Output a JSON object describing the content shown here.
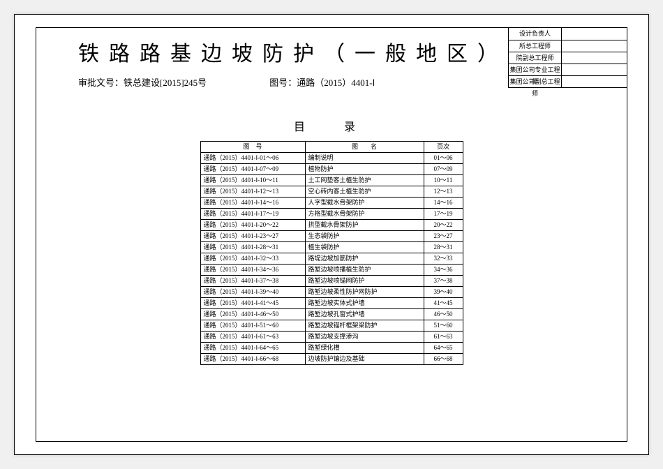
{
  "header": {
    "main_title": "铁路路基边坡防护（一般地区）",
    "approval_label": "审批文号：",
    "approval_no": "铁总建设[2015]245号",
    "drawing_label": "图号：",
    "drawing_no": "通路（2015）4401-Ⅰ"
  },
  "approval_rows": [
    {
      "label": "设计负责人",
      "value": ""
    },
    {
      "label": "所总工程师",
      "value": ""
    },
    {
      "label": "院副总工程师",
      "value": ""
    },
    {
      "label": "集团公司专业工程师",
      "value": ""
    },
    {
      "label": "集团公司副总工程师",
      "value": ""
    }
  ],
  "toc": {
    "title": "目　录",
    "columns": {
      "code": "图　号",
      "name": "图　　名",
      "page": "页次"
    },
    "rows": [
      {
        "code": "通路（2015）4401-Ⅰ-01～06",
        "name": "编制说明",
        "page": "01～06"
      },
      {
        "code": "通路（2015）4401-Ⅰ-07～09",
        "name": "植物防护",
        "page": "07～09"
      },
      {
        "code": "通路（2015）4401-Ⅰ-10～11",
        "name": "土工网垫客土植生防护",
        "page": "10～11"
      },
      {
        "code": "通路（2015）4401-Ⅰ-12～13",
        "name": "空心砖内客土植生防护",
        "page": "12～13"
      },
      {
        "code": "通路（2015）4401-Ⅰ-14～16",
        "name": "人字型截水骨架防护",
        "page": "14～16"
      },
      {
        "code": "通路（2015）4401-Ⅰ-17～19",
        "name": "方格型截水骨架防护",
        "page": "17～19"
      },
      {
        "code": "通路（2015）4401-Ⅰ-20～22",
        "name": "拱型截水骨架防护",
        "page": "20～22"
      },
      {
        "code": "通路（2015）4401-Ⅰ-23～27",
        "name": "生态袋防护",
        "page": "23～27"
      },
      {
        "code": "通路（2015）4401-Ⅰ-28～31",
        "name": "植生袋防护",
        "page": "28～31"
      },
      {
        "code": "通路（2015）4401-Ⅰ-32～33",
        "name": "路堤边坡加筋防护",
        "page": "32～33"
      },
      {
        "code": "通路（2015）4401-Ⅰ-34～36",
        "name": "路堑边坡喷播植生防护",
        "page": "34～36"
      },
      {
        "code": "通路（2015）4401-Ⅰ-37～38",
        "name": "路堑边坡喷锚网防护",
        "page": "37～38"
      },
      {
        "code": "通路（2015）4401-Ⅰ-39～40",
        "name": "路堑边坡柔性防护网防护",
        "page": "39～40"
      },
      {
        "code": "通路（2015）4401-Ⅰ-41～45",
        "name": "路堑边坡实体式护墙",
        "page": "41～45"
      },
      {
        "code": "通路（2015）4401-Ⅰ-46～50",
        "name": "路堑边坡孔窗式护墙",
        "page": "46～50"
      },
      {
        "code": "通路（2015）4401-Ⅰ-51～60",
        "name": "路堑边坡锚杆框架梁防护",
        "page": "51～60"
      },
      {
        "code": "通路（2015）4401-Ⅰ-61～63",
        "name": "路堑边坡支撑渗沟",
        "page": "61～63"
      },
      {
        "code": "通路（2015）4401-Ⅰ-64～65",
        "name": "路堑绿化槽",
        "page": "64～65"
      },
      {
        "code": "通路（2015）4401-Ⅰ-66～68",
        "name": "边坡防护镶边及基础",
        "page": "66～68"
      }
    ]
  }
}
